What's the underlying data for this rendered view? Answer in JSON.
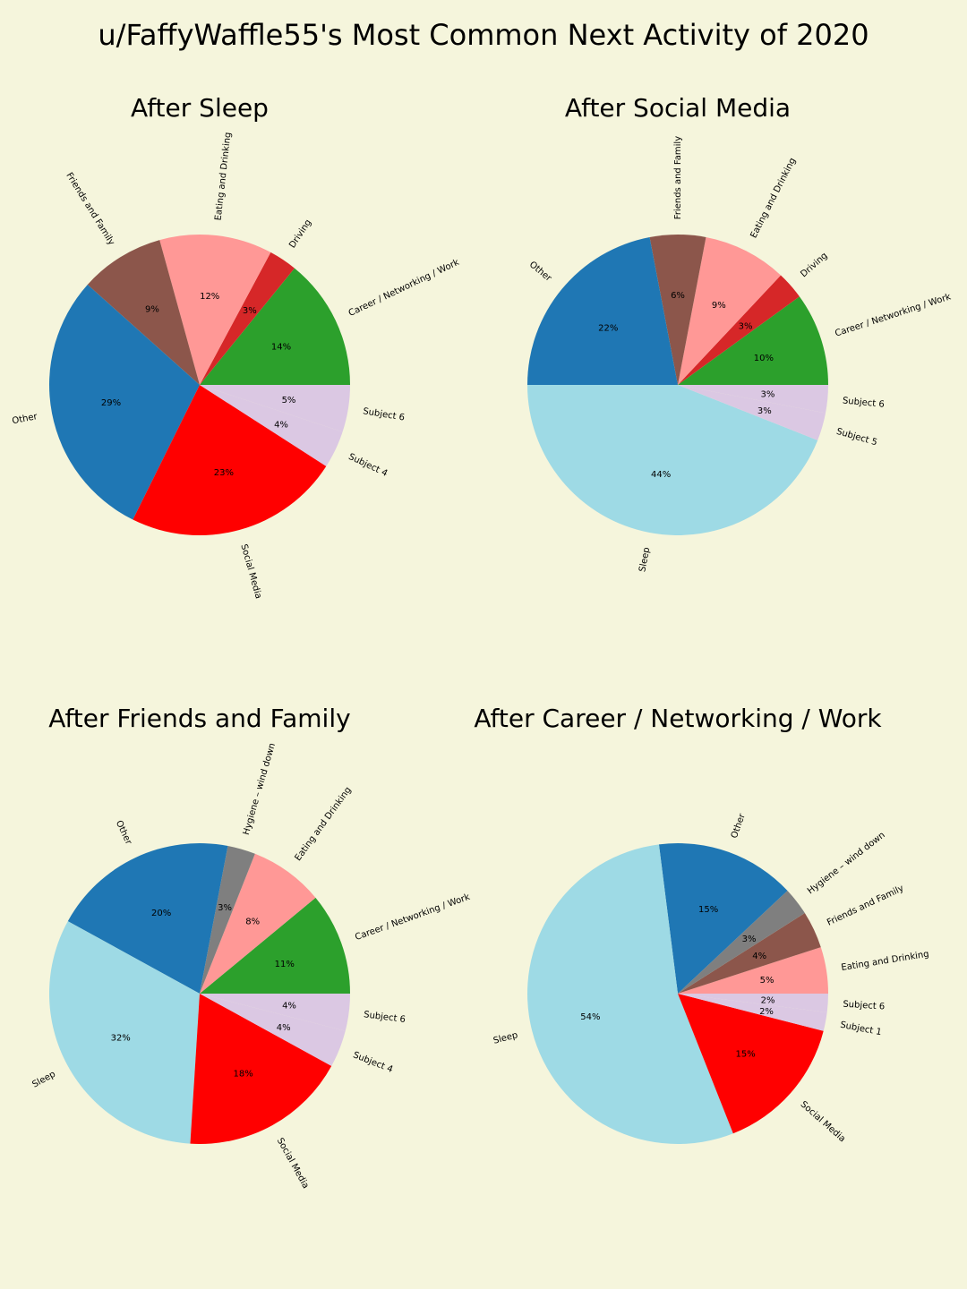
{
  "figure": {
    "title": "u/FaffyWaffle55's Most Common Next Activity of 2020",
    "background": "#f5f5dc"
  },
  "colors": {
    "Career / Networking / Work": "#2ca02c",
    "Driving": "#d62728",
    "Eating and Drinking": "#ff9896",
    "Friends and Family": "#8c564b",
    "Other": "#1f77b4",
    "Social Media": "#ff0000",
    "Sleep": "#9edae5",
    "Hygiene – wind down": "#7f7f7f",
    "Subject": "#dbc8e3"
  },
  "chart_data": [
    {
      "type": "pie",
      "title": "After Sleep",
      "slices": [
        {
          "label": "Career / Networking / Work",
          "value": 14,
          "pct_label": "14%"
        },
        {
          "label": "Driving",
          "value": 3,
          "pct_label": "3%"
        },
        {
          "label": "Eating and Drinking",
          "value": 12,
          "pct_label": "12%"
        },
        {
          "label": "Friends and Family",
          "value": 9,
          "pct_label": "9%"
        },
        {
          "label": "Other",
          "value": 29,
          "pct_label": "29%"
        },
        {
          "label": "Social Media",
          "value": 23,
          "pct_label": "23%"
        },
        {
          "label": "Subject 4",
          "value": 4,
          "pct_label": "4%"
        },
        {
          "label": "Subject 6",
          "value": 5,
          "pct_label": "5%"
        }
      ]
    },
    {
      "type": "pie",
      "title": "After Social Media",
      "slices": [
        {
          "label": "Career / Networking / Work",
          "value": 10,
          "pct_label": "10%"
        },
        {
          "label": "Driving",
          "value": 3,
          "pct_label": "3%"
        },
        {
          "label": "Eating and Drinking",
          "value": 9,
          "pct_label": "9%"
        },
        {
          "label": "Friends and Family",
          "value": 6,
          "pct_label": "6%"
        },
        {
          "label": "Other",
          "value": 22,
          "pct_label": "22%"
        },
        {
          "label": "Sleep",
          "value": 44,
          "pct_label": "44%"
        },
        {
          "label": "Subject 5",
          "value": 3,
          "pct_label": "3%"
        },
        {
          "label": "Subject 6",
          "value": 3,
          "pct_label": "3%"
        }
      ]
    },
    {
      "type": "pie",
      "title": "After Friends and Family",
      "slices": [
        {
          "label": "Career / Networking / Work",
          "value": 11,
          "pct_label": "11%"
        },
        {
          "label": "Eating and Drinking",
          "value": 8,
          "pct_label": "8%"
        },
        {
          "label": "Hygiene – wind down",
          "value": 3,
          "pct_label": "3%"
        },
        {
          "label": "Other",
          "value": 20,
          "pct_label": "20%"
        },
        {
          "label": "Sleep",
          "value": 32,
          "pct_label": "32%"
        },
        {
          "label": "Social Media",
          "value": 18,
          "pct_label": "18%"
        },
        {
          "label": "Subject 4",
          "value": 4,
          "pct_label": "4%"
        },
        {
          "label": "Subject 6",
          "value": 4,
          "pct_label": "4%"
        }
      ]
    },
    {
      "type": "pie",
      "title": "After Career / Networking / Work",
      "slices": [
        {
          "label": "Eating and Drinking",
          "value": 5,
          "pct_label": "5%"
        },
        {
          "label": "Friends and Family",
          "value": 4,
          "pct_label": "4%"
        },
        {
          "label": "Hygiene – wind down",
          "value": 3,
          "pct_label": "3%"
        },
        {
          "label": "Other",
          "value": 15,
          "pct_label": "15%"
        },
        {
          "label": "Sleep",
          "value": 54,
          "pct_label": "54%"
        },
        {
          "label": "Social Media",
          "value": 15,
          "pct_label": "15%"
        },
        {
          "label": "Subject 1",
          "value": 2,
          "pct_label": "2%"
        },
        {
          "label": "Subject 6",
          "value": 2,
          "pct_label": "2%"
        }
      ]
    }
  ]
}
